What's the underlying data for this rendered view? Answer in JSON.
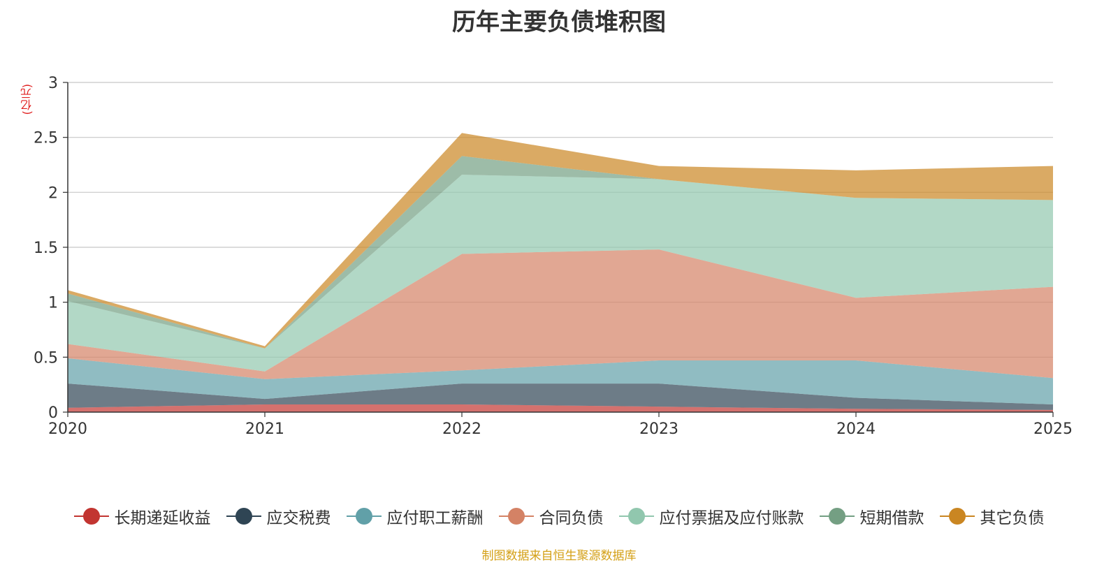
{
  "chart_data": {
    "type": "area",
    "stacked": true,
    "title": "历年主要负债堆积图",
    "ylabel": "(亿元)",
    "xlabel": "",
    "x": [
      "2020",
      "2021",
      "2022",
      "2023",
      "2024",
      "2025"
    ],
    "ylim": [
      0,
      3
    ],
    "yticks": [
      "0",
      "0.5",
      "1",
      "1.5",
      "2",
      "2.5",
      "3"
    ],
    "grid": true,
    "legend_position": "bottom",
    "series": [
      {
        "name": "长期递延收益",
        "color": "#c23531",
        "values": [
          0.04,
          0.07,
          0.07,
          0.05,
          0.03,
          0.02
        ]
      },
      {
        "name": "应交税费",
        "color": "#2f4554",
        "values": [
          0.22,
          0.05,
          0.19,
          0.21,
          0.1,
          0.05
        ]
      },
      {
        "name": "应付职工薪酬",
        "color": "#61a0a8",
        "values": [
          0.23,
          0.18,
          0.12,
          0.21,
          0.34,
          0.24
        ]
      },
      {
        "name": "合同负债",
        "color": "#d48265",
        "values": [
          0.13,
          0.07,
          1.06,
          1.01,
          0.57,
          0.83
        ]
      },
      {
        "name": "应付票据及应付账款",
        "color": "#91c7ae",
        "values": [
          0.39,
          0.21,
          0.72,
          0.64,
          0.91,
          0.79
        ]
      },
      {
        "name": "短期借款",
        "color": "#749f83",
        "values": [
          0.07,
          0.0,
          0.17,
          0.0,
          0.0,
          0.0
        ]
      },
      {
        "name": "其它负债",
        "color": "#ca8622",
        "values": [
          0.03,
          0.02,
          0.21,
          0.12,
          0.25,
          0.31
        ]
      }
    ]
  },
  "source_note": "制图数据来自恒生聚源数据库"
}
